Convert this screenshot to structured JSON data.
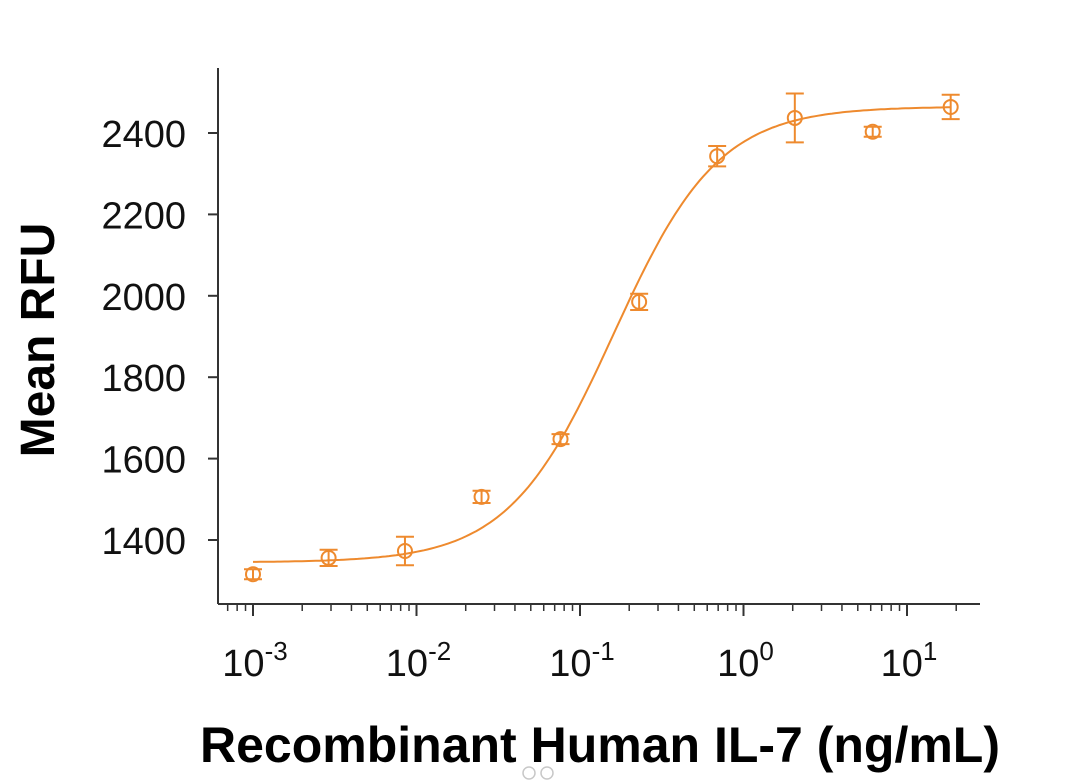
{
  "chart_data": {
    "type": "scatter",
    "title": "",
    "xlabel": "Recombinant Human IL-7 (ng/mL)",
    "ylabel": "Mean RFU",
    "xscale": "log",
    "xlim": [
      0.00065,
      27
    ],
    "ylim": [
      1240,
      2560
    ],
    "grid": false,
    "legend": "none",
    "series_color": "#EE8A2E",
    "yticks": [
      1400,
      1600,
      1800,
      2000,
      2200,
      2400
    ],
    "ytick_labels": [
      "1400",
      "1600",
      "1800",
      "2000",
      "2200",
      "2400"
    ],
    "xticks": [
      0.001,
      0.01,
      0.1,
      1,
      10
    ],
    "xtick_labels": [
      {
        "base": "10",
        "exp": "-3"
      },
      {
        "base": "10",
        "exp": "-2"
      },
      {
        "base": "10",
        "exp": "-1"
      },
      {
        "base": "10",
        "exp": "0"
      },
      {
        "base": "10",
        "exp": "1"
      }
    ],
    "series": [
      {
        "name": "Recombinant Human IL-7",
        "x": [
          0.001,
          0.0029,
          0.0085,
          0.025,
          0.076,
          0.23,
          0.69,
          2.06,
          6.17,
          18.5
        ],
        "y": [
          1316,
          1356,
          1373,
          1506,
          1648,
          1985,
          2343,
          2437,
          2403,
          2464
        ],
        "error": [
          10,
          20,
          35,
          15,
          10,
          20,
          25,
          60,
          12,
          30
        ]
      }
    ],
    "fit": {
      "type": "4PL",
      "bottom": 1345,
      "top": 2465,
      "ec50": 0.16,
      "hill": 1.35,
      "x_range": [
        0.001,
        18.5
      ]
    }
  }
}
